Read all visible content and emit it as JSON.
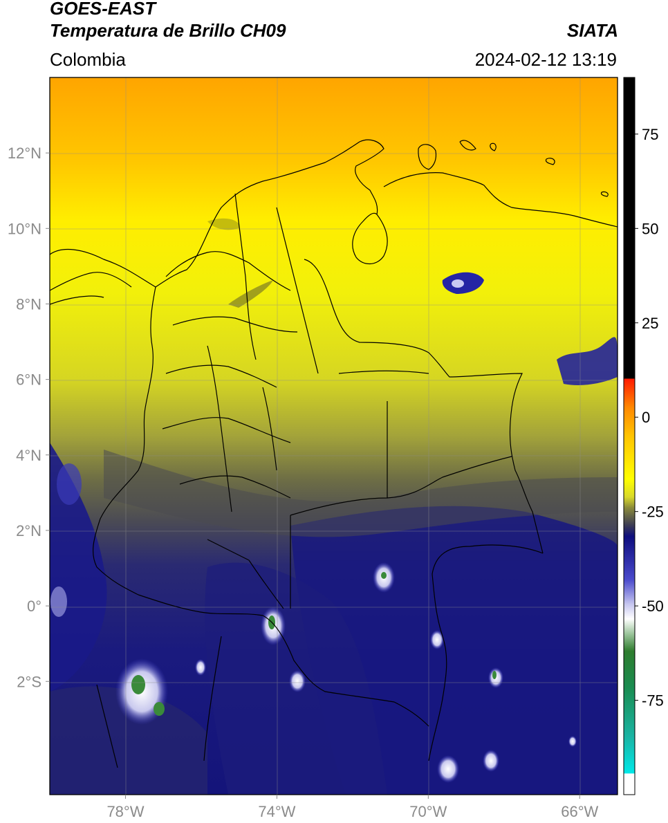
{
  "header": {
    "satellite": "GOES-EAST",
    "product": "Temperatura de Brillo CH09",
    "brand": "SIATA",
    "region": "Colombia",
    "timestamp": "2024-02-12 13:19"
  },
  "map": {
    "lon_range": [
      -80,
      -65
    ],
    "lat_range": [
      -5,
      14
    ],
    "lat_ticks": [
      {
        "value": 12,
        "label": "12°N"
      },
      {
        "value": 10,
        "label": "10°N"
      },
      {
        "value": 8,
        "label": "8°N"
      },
      {
        "value": 6,
        "label": "6°N"
      },
      {
        "value": 4,
        "label": "4°N"
      },
      {
        "value": 2,
        "label": "2°N"
      },
      {
        "value": 0,
        "label": "0°"
      },
      {
        "value": -2,
        "label": "2°S"
      }
    ],
    "lon_ticks": [
      {
        "value": -78,
        "label": "78°W"
      },
      {
        "value": -74,
        "label": "74°W"
      },
      {
        "value": -70,
        "label": "70°W"
      },
      {
        "value": -66,
        "label": "66°W"
      }
    ],
    "grid": true
  },
  "colorbar": {
    "range": [
      -100,
      90
    ],
    "tick_labels": [
      {
        "value": 75,
        "label": "75"
      },
      {
        "value": 50,
        "label": "50"
      },
      {
        "value": 25,
        "label": "25"
      },
      {
        "value": 0,
        "label": "0"
      },
      {
        "value": -25,
        "label": "-25"
      },
      {
        "value": -50,
        "label": "-50"
      },
      {
        "value": -75,
        "label": "-75"
      }
    ],
    "colors": {
      "black": "#000000",
      "red": "#ff1a00",
      "orange": "#ff9900",
      "yellow": "#ffff00",
      "olive": "#6b6b2a",
      "gray": "#464646",
      "navy": "#0b0b7a",
      "blue": "#3d3dc8",
      "white": "#ffffff",
      "green": "#2e7d2e",
      "cyan": "#00e6e6"
    }
  }
}
